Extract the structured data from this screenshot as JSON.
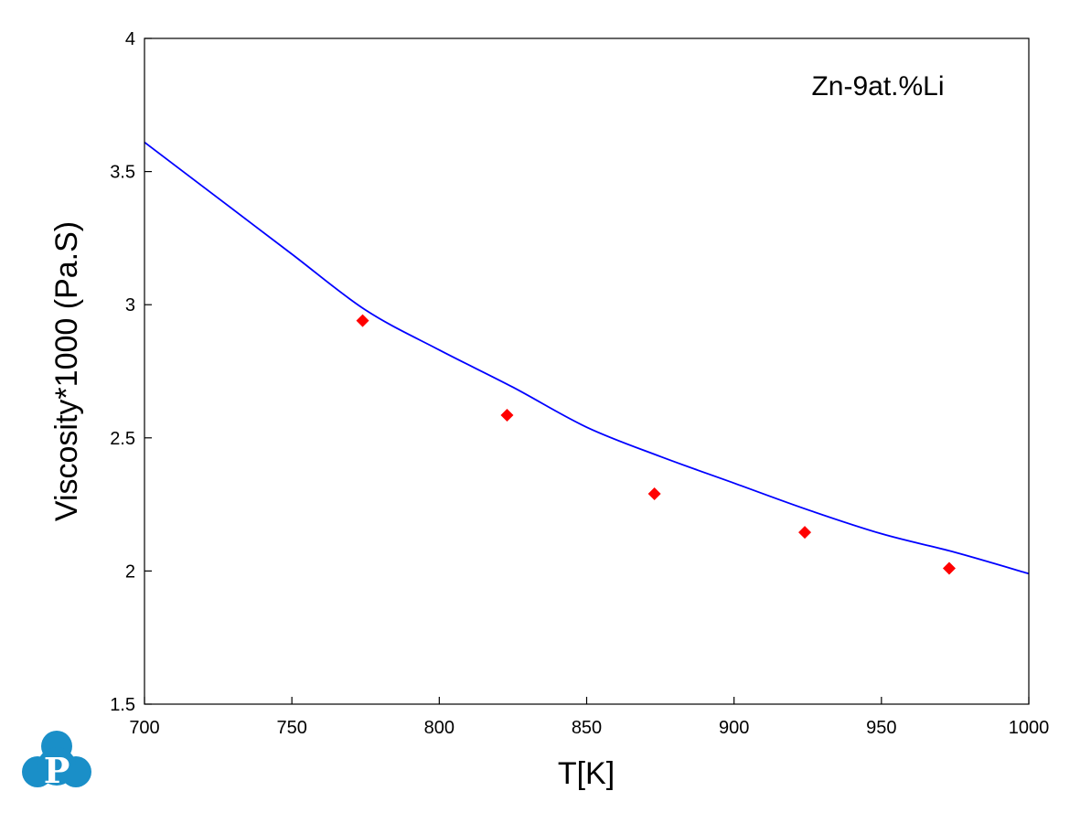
{
  "chart_data": {
    "type": "line",
    "title": "",
    "xlabel": "T[K]",
    "ylabel": "Viscosity*1000 (Pa.S)",
    "annotation": "Zn-9at.%Li",
    "xlim": [
      700,
      1000
    ],
    "ylim": [
      1.5,
      4
    ],
    "x_ticks": [
      "700",
      "750",
      "800",
      "850",
      "900",
      "950",
      "1000"
    ],
    "y_ticks": [
      "1.5",
      "2",
      "2.5",
      "3",
      "3.5",
      "4"
    ],
    "grid": false,
    "series": [
      {
        "kind": "line",
        "color": "#0000ff",
        "x": [
          700,
          725,
          750,
          775,
          800,
          825,
          850,
          875,
          900,
          925,
          950,
          975,
          1000
        ],
        "y": [
          3.61,
          3.4,
          3.19,
          2.98,
          2.83,
          2.69,
          2.54,
          2.43,
          2.33,
          2.23,
          2.14,
          2.07,
          1.99
        ]
      },
      {
        "kind": "scatter",
        "marker": "diamond",
        "color": "#ff0000",
        "x": [
          774,
          823,
          873,
          924,
          973
        ],
        "y": [
          2.94,
          2.585,
          2.29,
          2.145,
          2.01
        ]
      }
    ]
  },
  "logo": {
    "letter": "P",
    "color": "#1a8fc8"
  }
}
